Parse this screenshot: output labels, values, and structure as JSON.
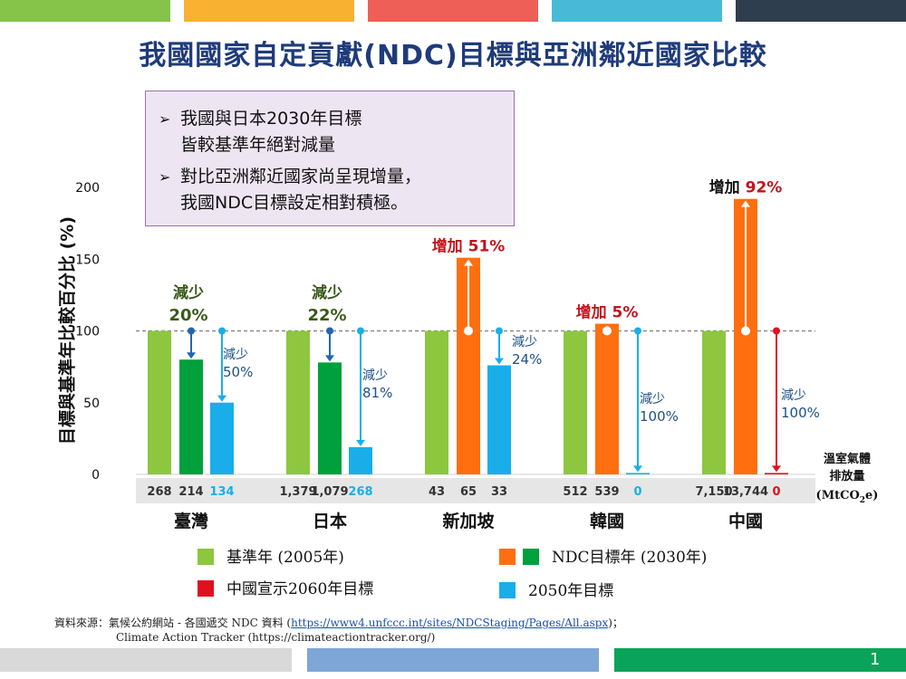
{
  "title": "我國國家自定貢獻(NDC)目標與亞洲鄰近國家比較",
  "callout": {
    "items": [
      "我國與日本2030年目標\n皆較基準年絕對減量",
      "對比亞洲鄰近國家尚呈現增量，\n我國NDC目標設定相對積極。"
    ]
  },
  "colors": {
    "base": "#8dc63f",
    "ndc_reduce": "#00a03c",
    "ndc_increase": "#ff6f0f",
    "target_2050": "#19aeea",
    "china_2060": "#e0101e",
    "title": "#1f3b7a",
    "reduce_text": "#3a5a1a",
    "increase_text": "#c4131b",
    "blue_text": "#1e4f8a"
  },
  "chart_data": {
    "type": "bar",
    "ylabel": "目標與基準年比較百分比 (%)",
    "ylim": [
      0,
      200
    ],
    "yticks": [
      "0",
      "50",
      "100",
      "150",
      "200"
    ],
    "unit_label": [
      "溫室氣體",
      "排放量",
      "(MtCO",
      "2",
      "e)"
    ],
    "reference_line": 100,
    "countries": [
      {
        "name": "臺灣",
        "bars": [
          {
            "series": "基準年",
            "value": 100,
            "emission": "268",
            "color": "#8dc63f",
            "label_color": "#333333"
          },
          {
            "series": "NDC目標年",
            "value": 80,
            "emission": "214",
            "color": "#00a03c",
            "label_color": "#333333"
          },
          {
            "series": "2050年目標",
            "value": 50,
            "emission": "134",
            "color": "#19aeea",
            "label_color": "#19aeea"
          }
        ],
        "ndc_change": {
          "word": "減少",
          "pct": "20%",
          "type": "reduce"
        },
        "other_change": {
          "word": "減少",
          "pct": "50%"
        }
      },
      {
        "name": "日本",
        "bars": [
          {
            "series": "基準年",
            "value": 100,
            "emission": "1,379",
            "color": "#8dc63f",
            "label_color": "#333333"
          },
          {
            "series": "NDC目標年",
            "value": 78,
            "emission": "1,079",
            "color": "#00a03c",
            "label_color": "#333333"
          },
          {
            "series": "2050年目標",
            "value": 19,
            "emission": "268",
            "color": "#19aeea",
            "label_color": "#19aeea"
          }
        ],
        "ndc_change": {
          "word": "減少",
          "pct": "22%",
          "type": "reduce"
        },
        "other_change": {
          "word": "減少",
          "pct": "81%"
        }
      },
      {
        "name": "新加坡",
        "bars": [
          {
            "series": "基準年",
            "value": 100,
            "emission": "43",
            "color": "#8dc63f",
            "label_color": "#333333"
          },
          {
            "series": "NDC目標年",
            "value": 151,
            "emission": "65",
            "color": "#ff6f0f",
            "label_color": "#333333"
          },
          {
            "series": "2050年目標",
            "value": 76,
            "emission": "33",
            "color": "#19aeea",
            "label_color": "#333333"
          }
        ],
        "ndc_change": {
          "word": "增加",
          "pct": "51%",
          "type": "increase"
        },
        "other_change": {
          "word": "減少",
          "pct": "24%"
        }
      },
      {
        "name": "韓國",
        "bars": [
          {
            "series": "基準年",
            "value": 100,
            "emission": "512",
            "color": "#8dc63f",
            "label_color": "#333333"
          },
          {
            "series": "NDC目標年",
            "value": 105,
            "emission": "539",
            "color": "#ff6f0f",
            "label_color": "#333333"
          },
          {
            "series": "2050年目標",
            "value": 1,
            "emission": "0",
            "color": "#19aeea",
            "label_color": "#19aeea"
          }
        ],
        "ndc_change": {
          "word": "增加",
          "pct": "5%",
          "type": "increase"
        },
        "other_change": {
          "word": "減少",
          "pct": "100%"
        }
      },
      {
        "name": "中國",
        "bars": [
          {
            "series": "基準年",
            "value": 100,
            "emission": "7,150",
            "color": "#8dc63f",
            "label_color": "#333333"
          },
          {
            "series": "NDC目標年",
            "value": 192,
            "emission": "13,744",
            "color": "#ff6f0f",
            "label_color": "#333333"
          },
          {
            "series": "2060年目標",
            "value": 1,
            "emission": "0",
            "color": "#e0101e",
            "label_color": "#e0101e"
          }
        ],
        "ndc_change": {
          "word": "增加",
          "pct": "92%",
          "type": "increase"
        },
        "other_change": {
          "word": "減少",
          "pct": "100%"
        }
      }
    ]
  },
  "legend": {
    "base": "基準年 (2005年)",
    "ndc": "NDC目標年 (2030年)",
    "china": "中國宣示2060年目標",
    "target_2050": "2050年目標"
  },
  "source": {
    "prefix": "資料來源：氣候公約網站 - 各國遞交 NDC 資料 (",
    "link": "https://www4.unfccc.int/sites/NDCStaging/Pages/All.aspx",
    "suffix": ")；",
    "line2": "Climate Action Tracker (https://climateactiontracker.org/)"
  },
  "page_number": "1"
}
